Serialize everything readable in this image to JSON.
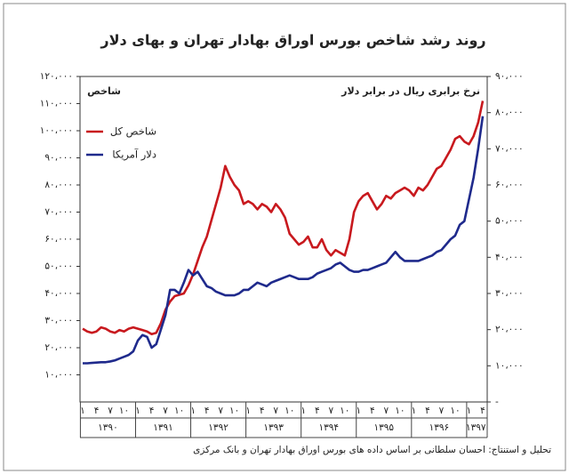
{
  "chart_data": {
    "type": "line",
    "title": "روند رشد شاخص بورس اوراق بهادار تهران و بهای دلار",
    "ylabel": "شاخص",
    "y2label": "نرخ برابری ریال در برابر دلار",
    "source": "تحلیل و استنتاج: احسان سلطانی بر اساس داده های بورس اوراق بهادار تهران و بانک مرکزی",
    "categories": [
      "۱",
      null,
      null,
      "۴",
      null,
      null,
      "۷",
      null,
      null,
      "۱۰",
      null,
      null,
      "۱",
      null,
      null,
      "۴",
      null,
      null,
      "۷",
      null,
      null,
      "۱۰",
      null,
      null,
      "۱",
      null,
      null,
      "۴",
      null,
      null,
      "۷",
      null,
      null,
      "۱۰",
      null,
      null,
      "۱",
      null,
      null,
      "۴",
      null,
      null,
      "۷",
      null,
      null,
      "۱۰",
      null,
      null,
      "۱",
      null,
      null,
      "۴",
      null,
      null,
      "۷",
      null,
      null,
      "۱۰",
      null,
      null,
      "۱",
      null,
      null,
      "۴",
      null,
      null,
      "۷",
      null,
      null,
      "۱۰",
      null,
      null,
      "۱",
      null,
      null,
      "۴",
      null,
      null,
      "۷",
      null,
      null,
      "۱۰",
      null,
      null,
      "۱",
      null,
      null,
      "۴"
    ],
    "years": [
      "۱۳۹۰",
      "۱۳۹۱",
      "۱۳۹۲",
      "۱۳۹۳",
      "۱۳۹۴",
      "۱۳۹۵",
      "۱۳۹۶",
      "۱۳۹۷"
    ],
    "series": [
      {
        "name": "شاخص کل",
        "color": "#c8191e",
        "values": [
          27000,
          26000,
          25500,
          26000,
          27500,
          27000,
          26000,
          25500,
          26500,
          26000,
          27000,
          27500,
          27000,
          26500,
          26000,
          25000,
          25500,
          29000,
          34000,
          37000,
          39000,
          39500,
          40000,
          43000,
          47000,
          52000,
          57000,
          61000,
          67000,
          73000,
          79000,
          87000,
          83000,
          80000,
          78000,
          73000,
          74000,
          73000,
          71000,
          73000,
          72000,
          70000,
          73000,
          71000,
          68000,
          62000,
          60000,
          58000,
          59000,
          61000,
          57000,
          57000,
          60000,
          56000,
          54000,
          56000,
          55000,
          54000,
          60000,
          70000,
          74000,
          76000,
          77000,
          74000,
          71000,
          73000,
          76000,
          75000,
          77000,
          78000,
          79000,
          78000,
          76000,
          79000,
          78000,
          80000,
          83000,
          86000,
          87000,
          90000,
          93000,
          97000,
          98000,
          96000,
          95000,
          98000,
          103000,
          111000
        ]
      },
      {
        "name": "دلار آمریکا",
        "color": "#1f2a8c",
        "axis": "y2",
        "values": [
          10700,
          10700,
          10800,
          10900,
          11000,
          11000,
          11200,
          11500,
          12000,
          12500,
          13000,
          14000,
          17000,
          18500,
          18000,
          15000,
          16000,
          20000,
          24000,
          31000,
          31000,
          30000,
          33000,
          36500,
          35000,
          36000,
          34000,
          32000,
          31500,
          30500,
          30000,
          29500,
          29500,
          29500,
          30000,
          31000,
          31000,
          32000,
          33000,
          32500,
          32000,
          33000,
          33500,
          34000,
          34500,
          35000,
          34500,
          34000,
          34000,
          34000,
          34500,
          35500,
          36000,
          36500,
          37000,
          38000,
          38500,
          37500,
          36500,
          36000,
          36000,
          36500,
          36500,
          37000,
          37500,
          38000,
          38500,
          40000,
          41500,
          40000,
          39000,
          39000,
          39000,
          39000,
          39500,
          40000,
          40500,
          41500,
          42000,
          43500,
          45000,
          46000,
          49000,
          50000,
          56000,
          62000,
          70000,
          79000
        ]
      }
    ],
    "ylim": [
      0,
      120000
    ],
    "yticks": [
      {
        "value": 10000,
        "label": "۱۰،۰۰۰"
      },
      {
        "value": 20000,
        "label": "۲۰،۰۰۰"
      },
      {
        "value": 30000,
        "label": "۳۰،۰۰۰"
      },
      {
        "value": 40000,
        "label": "۴۰،۰۰۰"
      },
      {
        "value": 50000,
        "label": "۵۰،۰۰۰"
      },
      {
        "value": 60000,
        "label": "۶۰،۰۰۰"
      },
      {
        "value": 70000,
        "label": "۷۰،۰۰۰"
      },
      {
        "value": 80000,
        "label": "۸۰،۰۰۰"
      },
      {
        "value": 90000,
        "label": "۹۰،۰۰۰"
      },
      {
        "value": 100000,
        "label": "۱۰۰،۰۰۰"
      },
      {
        "value": 110000,
        "label": "۱۱۰،۰۰۰"
      },
      {
        "value": 120000,
        "label": "۱۲۰،۰۰۰"
      }
    ],
    "y2lim": [
      0,
      90000
    ],
    "y2ticks": [
      {
        "value": 0,
        "label": "-"
      },
      {
        "value": 10000,
        "label": "۱۰،۰۰۰"
      },
      {
        "value": 20000,
        "label": "۲۰،۰۰۰"
      },
      {
        "value": 30000,
        "label": "۳۰،۰۰۰"
      },
      {
        "value": 40000,
        "label": "۴۰،۰۰۰"
      },
      {
        "value": 50000,
        "label": "۵۰،۰۰۰"
      },
      {
        "value": 60000,
        "label": "۶۰،۰۰۰"
      },
      {
        "value": 70000,
        "label": "۷۰،۰۰۰"
      },
      {
        "value": 80000,
        "label": "۸۰،۰۰۰"
      },
      {
        "value": 90000,
        "label": "۹۰،۰۰۰"
      }
    ]
  }
}
